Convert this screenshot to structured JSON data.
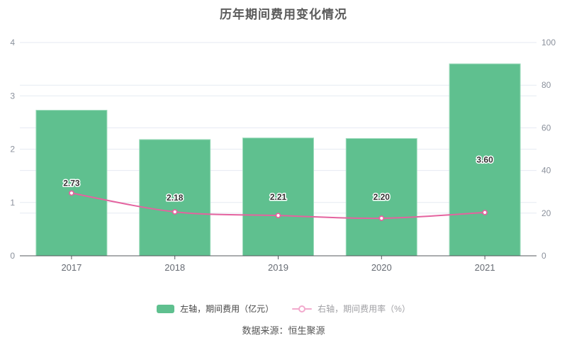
{
  "title": "历年期间费用变化情况",
  "source": "数据来源：恒生聚源",
  "legend": {
    "items": [
      {
        "label": "左轴，期间费用（亿元）",
        "type": "bar",
        "swatch_color": "#5fc08f",
        "text_color": "#454545"
      },
      {
        "label": "右轴，期间费用率（%）",
        "type": "line",
        "swatch_color": "#f2aacd",
        "text_color": "#9f9fa3"
      }
    ]
  },
  "chart_data": {
    "type": "bar+line",
    "categories": [
      "2017",
      "2018",
      "2019",
      "2020",
      "2021"
    ],
    "series": [
      {
        "name": "左轴，期间费用（亿元）",
        "type": "bar",
        "axis": "left",
        "values": [
          2.73,
          2.18,
          2.21,
          2.2,
          3.6
        ],
        "labels": [
          "2.73",
          "2.18",
          "2.21",
          "2.20",
          "3.60"
        ],
        "color": "#5fc08f",
        "border_color": "#9ddbbc"
      },
      {
        "name": "右轴，期间费用率（%）",
        "type": "line",
        "axis": "right",
        "values": [
          29.4,
          20.6,
          18.9,
          17.6,
          20.3
        ],
        "color": "#e4639f",
        "marker": "circle-open"
      }
    ],
    "left_axis": {
      "min": 0,
      "max": 4,
      "ticks": [
        "0",
        "1",
        "2",
        "3",
        "4"
      ]
    },
    "right_axis": {
      "min": 0,
      "max": 100,
      "ticks": [
        "0",
        "20",
        "40",
        "60",
        "80",
        "100"
      ]
    },
    "grid": true,
    "legend_position": "bottom",
    "colors": {
      "gridline": "#e6eaf2",
      "axis_line": "#56595e",
      "axis_tick_text": "#8b919c",
      "x_tick_text": "#666b73",
      "bar_value_text": "#333333"
    }
  }
}
